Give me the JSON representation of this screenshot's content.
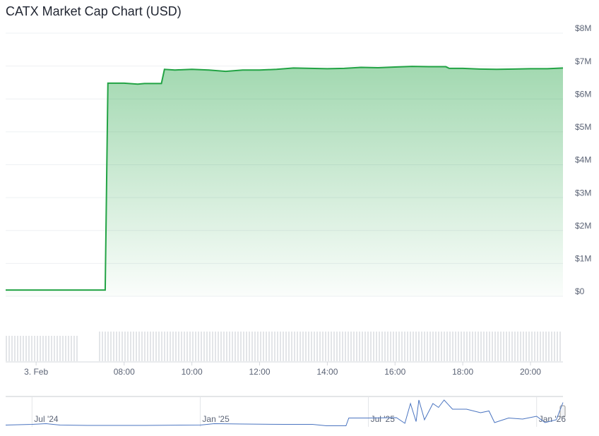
{
  "chart_data": [
    {
      "type": "area",
      "title": "CATX Market Cap Chart (USD)",
      "color": "#22a344",
      "grid": true,
      "x": [
        4.5,
        7.44,
        7.52,
        8,
        8.4,
        8.6,
        9.1,
        9.19,
        9.5,
        10,
        10.5,
        11,
        11.5,
        12,
        12.5,
        13,
        13.5,
        14,
        14.5,
        15,
        15.5,
        16,
        16.5,
        17,
        17.5,
        17.6,
        18,
        18.5,
        19,
        19.5,
        20,
        20.5,
        20.96
      ],
      "values": [
        190000,
        190000,
        6480000,
        6480000,
        6450000,
        6470000,
        6470000,
        6900000,
        6880000,
        6900000,
        6880000,
        6840000,
        6880000,
        6880000,
        6900000,
        6940000,
        6930000,
        6920000,
        6930000,
        6960000,
        6950000,
        6970000,
        6990000,
        6980000,
        6980000,
        6930000,
        6930000,
        6910000,
        6900000,
        6910000,
        6920000,
        6920000,
        6940000
      ],
      "xlim": [
        4.5,
        20.96
      ],
      "xticks": [
        {
          "value": 5.4,
          "label": "3. Feb"
        },
        {
          "value": 8,
          "label": "08:00"
        },
        {
          "value": 10,
          "label": "10:00"
        },
        {
          "value": 12,
          "label": "12:00"
        },
        {
          "value": 14,
          "label": "14:00"
        },
        {
          "value": 16,
          "label": "16:00"
        },
        {
          "value": 18,
          "label": "18:00"
        },
        {
          "value": 20,
          "label": "20:00"
        }
      ],
      "ylim": [
        0,
        8000000
      ],
      "yticks": [
        {
          "value": 0,
          "label": "$0"
        },
        {
          "value": 1000000,
          "label": "$1M"
        },
        {
          "value": 2000000,
          "label": "$2M"
        },
        {
          "value": 3000000,
          "label": "$3M"
        },
        {
          "value": 4000000,
          "label": "$4M"
        },
        {
          "value": 5000000,
          "label": "$5M"
        },
        {
          "value": 6000000,
          "label": "$6M"
        },
        {
          "value": 7000000,
          "label": "$7M"
        },
        {
          "value": 8000000,
          "label": "$8M"
        }
      ]
    },
    {
      "type": "line",
      "color": "#4a74c0",
      "x": [
        5.06,
        6,
        6.5,
        7,
        8,
        10,
        12,
        12.5,
        13.5,
        15,
        16,
        16.5,
        17.2,
        17.3,
        18,
        19,
        19.3,
        19.5,
        19.7,
        19.8,
        20,
        20.3,
        20.5,
        20.7,
        21,
        21.5,
        22,
        22.3,
        22.5,
        23,
        23.5,
        24,
        24.3,
        24.7,
        24.94
      ],
      "values": [
        500000,
        700000,
        900000,
        500000,
        400000,
        400000,
        500000,
        900000,
        800000,
        700000,
        700000,
        300000,
        300000,
        2500000,
        2500000,
        2600000,
        1000000,
        6600000,
        1500000,
        7600000,
        2000000,
        6600000,
        5500000,
        7600000,
        5000000,
        5000000,
        4000000,
        4500000,
        1200000,
        2500000,
        2200000,
        3000000,
        1200000,
        2000000,
        6900000
      ],
      "xlim": [
        5.06,
        24.94
      ],
      "xticks": [
        {
          "value": 6,
          "label": "Jul '24"
        },
        {
          "value": 12,
          "label": "Jan '25"
        },
        {
          "value": 18,
          "label": "Jul '25"
        },
        {
          "value": 24,
          "label": "Jan '26"
        }
      ],
      "ylim": [
        0,
        8000000
      ]
    }
  ]
}
